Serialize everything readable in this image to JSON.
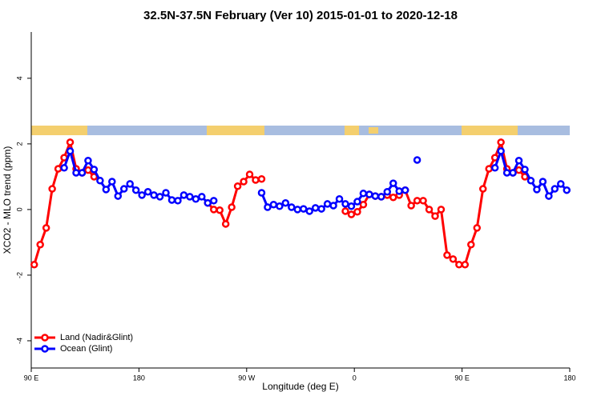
{
  "chart_data": {
    "type": "line",
    "title": "32.5N-37.5N February (Ver 10)   2015-01-01 to 2020-12-18",
    "x_label": "Longitude (deg E)",
    "y_label": "XCO2 - MLO trend (ppm)",
    "x": [
      92.5,
      97.5,
      102.5,
      107.5,
      112.5,
      117.5,
      122.5,
      127.5,
      132.5,
      137.5,
      142.5,
      147.5,
      152.5,
      157.5,
      162.5,
      167.5,
      172.5,
      177.5,
      182.5,
      187.5,
      192.5,
      197.5,
      202.5,
      207.5,
      212.5,
      217.5,
      222.5,
      227.5,
      232.5,
      237.5,
      242.5,
      247.5,
      252.5,
      257.5,
      262.5,
      267.5,
      272.5,
      277.5,
      282.5,
      287.5,
      292.5,
      297.5,
      302.5,
      307.5,
      312.5,
      317.5,
      322.5,
      327.5,
      332.5,
      337.5,
      342.5,
      347.5,
      352.5,
      357.5,
      362.5,
      367.5,
      372.5,
      377.5,
      382.5,
      387.5,
      392.5,
      397.5,
      402.5,
      407.5,
      412.5,
      417.5,
      422.5,
      427.5,
      432.5,
      437.5,
      442.5,
      447.5,
      452.5,
      457.5,
      462.5,
      467.5,
      472.5,
      477.5,
      482.5,
      487.5,
      492.5,
      497.5,
      502.5,
      507.5,
      512.5,
      517.5,
      522.5,
      527.5,
      532.5,
      537.5
    ],
    "series": [
      {
        "name": "Land (Nadir&Glint)",
        "color": "#ff0000",
        "values": [
          -1.68,
          -1.07,
          -0.56,
          0.63,
          1.24,
          1.58,
          2.05,
          1.24,
          1.12,
          1.2,
          1.0,
          null,
          null,
          null,
          null,
          null,
          null,
          null,
          null,
          null,
          null,
          null,
          null,
          null,
          null,
          null,
          null,
          null,
          null,
          0.2,
          0.0,
          -0.02,
          -0.44,
          0.07,
          0.71,
          0.85,
          1.07,
          0.9,
          0.93,
          null,
          null,
          null,
          null,
          null,
          null,
          null,
          null,
          null,
          null,
          null,
          null,
          null,
          -0.05,
          -0.15,
          -0.07,
          0.15,
          0.46,
          0.41,
          0.39,
          0.44,
          0.37,
          0.44,
          0.59,
          0.12,
          0.27,
          0.27,
          0.0,
          -0.2,
          0.0,
          -1.39,
          -1.51,
          -1.68,
          -1.68,
          -1.07,
          -0.56,
          0.63,
          1.24,
          1.58,
          2.05,
          1.24,
          1.12,
          1.2,
          1.0,
          null,
          null,
          null,
          null,
          null,
          null,
          null
        ]
      },
      {
        "name": "Ocean (Glint)",
        "color": "#0000ff",
        "values": [
          null,
          null,
          null,
          null,
          null,
          1.27,
          1.78,
          1.12,
          1.12,
          1.49,
          1.22,
          0.88,
          0.61,
          0.85,
          0.41,
          0.63,
          0.78,
          0.59,
          0.44,
          0.54,
          0.44,
          0.39,
          0.51,
          0.29,
          0.27,
          0.44,
          0.39,
          0.32,
          0.39,
          0.2,
          0.27,
          null,
          null,
          null,
          null,
          null,
          null,
          null,
          0.51,
          0.07,
          0.15,
          0.1,
          0.2,
          0.07,
          0.0,
          0.02,
          -0.05,
          0.05,
          0.02,
          0.17,
          0.12,
          0.32,
          0.17,
          0.1,
          0.24,
          0.49,
          0.46,
          0.41,
          0.39,
          0.54,
          0.8,
          0.56,
          0.59,
          null,
          1.51,
          null,
          null,
          null,
          null,
          null,
          null,
          null,
          null,
          null,
          null,
          null,
          null,
          1.27,
          1.78,
          1.12,
          1.12,
          1.49,
          1.22,
          0.88,
          0.61,
          0.85,
          0.41,
          0.63,
          0.78,
          0.59
        ]
      }
    ],
    "xlim": [
      90,
      540
    ],
    "xticks": [
      {
        "value": 90,
        "label": "90 E"
      },
      180,
      {
        "value": 270,
        "label": "90 W"
      },
      {
        "value": 360,
        "label": "0"
      },
      {
        "value": 450,
        "label": "90 E"
      },
      {
        "value": 540,
        "label": "180"
      }
    ],
    "ylim": [
      -4.83,
      5.41
    ],
    "yticks": [
      -4,
      -2,
      0,
      2,
      4
    ],
    "legend": "bottom-left"
  }
}
